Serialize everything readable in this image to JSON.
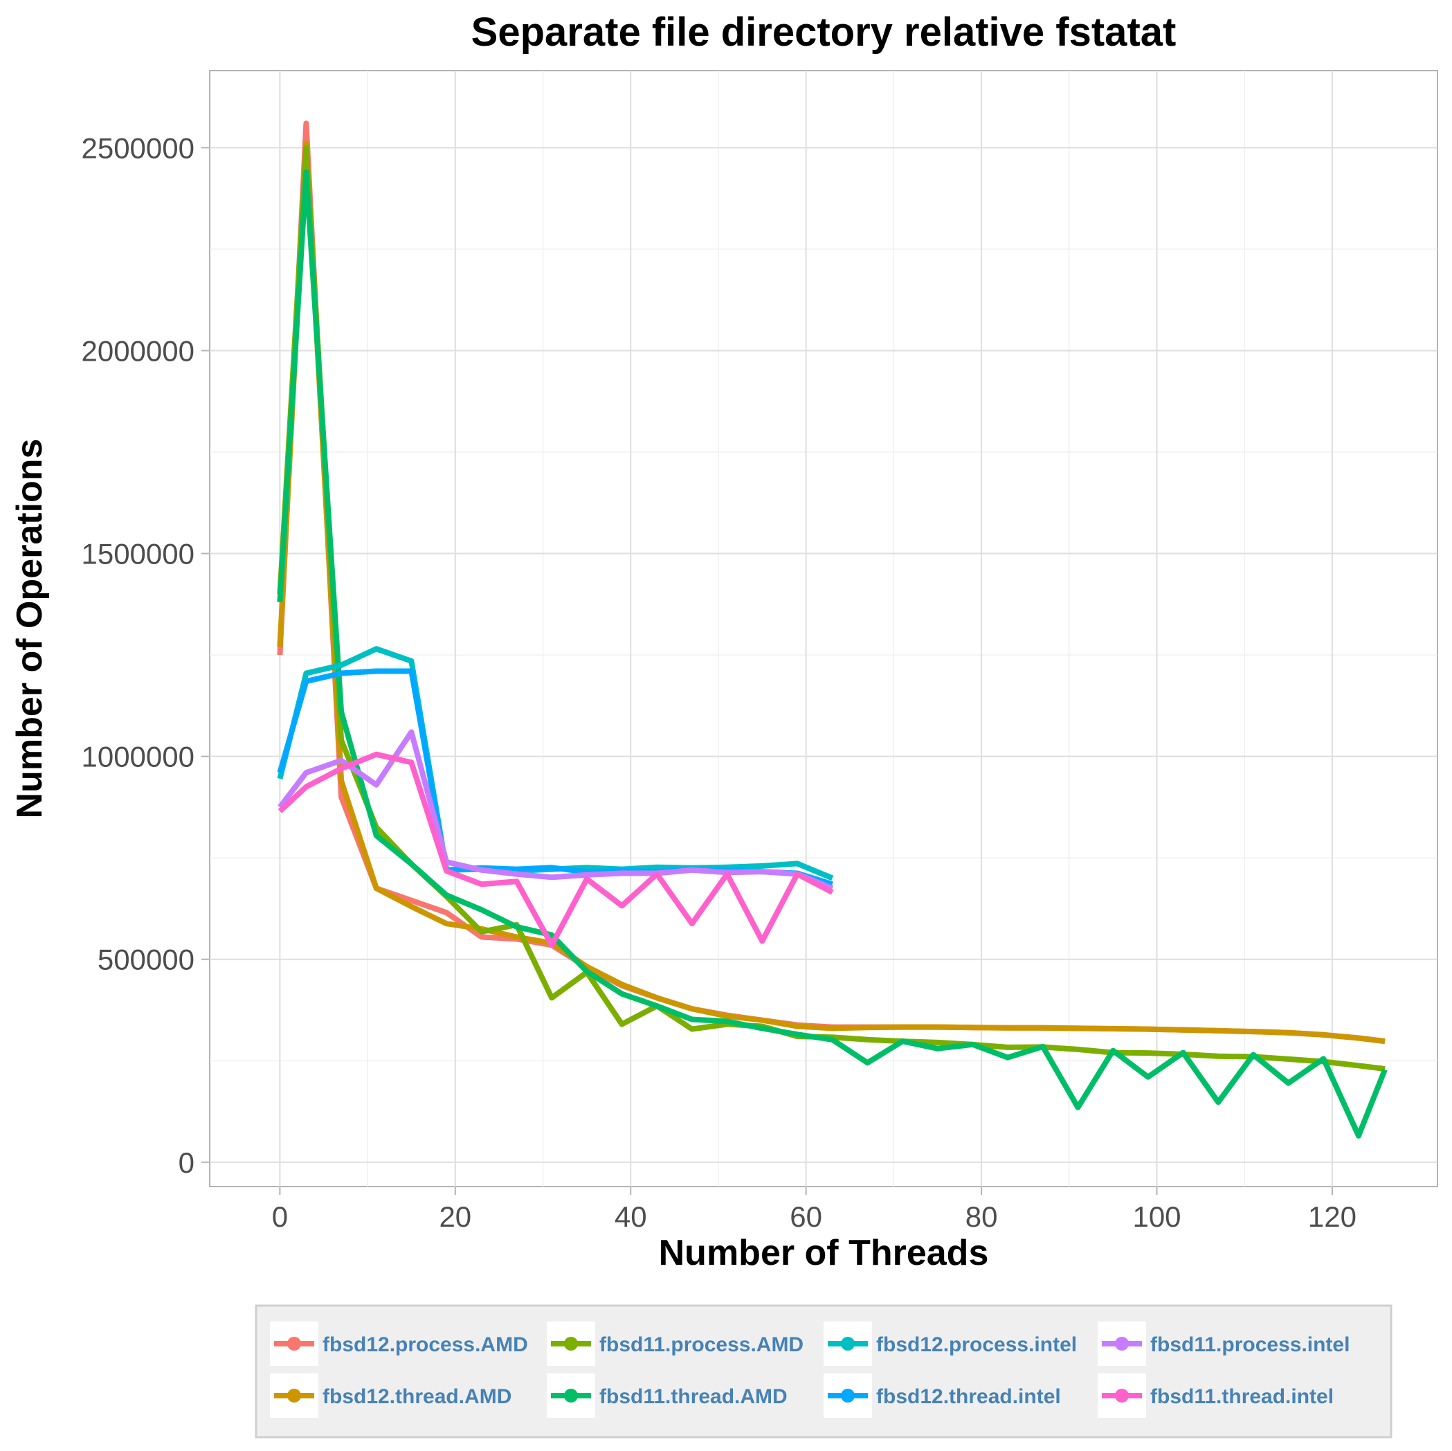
{
  "chart_data": {
    "type": "line",
    "title": "Separate file directory relative fstatat",
    "xlabel": "Number of Threads",
    "ylabel": "Number of Operations",
    "xlim": [
      -8,
      132
    ],
    "ylim": [
      -60000,
      2690000
    ],
    "x_ticks": [
      0,
      20,
      40,
      60,
      80,
      100,
      120
    ],
    "x_tick_labels": [
      "0",
      "20",
      "40",
      "60",
      "80",
      "100",
      "120"
    ],
    "y_ticks": [
      0,
      500000,
      1000000,
      1500000,
      2000000,
      2500000
    ],
    "y_tick_labels": [
      "0",
      "500000",
      "1000000",
      "1500000",
      "2000000",
      "2500000"
    ],
    "grid": true,
    "legend_position": "bottom",
    "series": [
      {
        "name": "fbsd12.process.AMD",
        "color": "#F8766D",
        "x": [
          0,
          3,
          7,
          11,
          15,
          19,
          23,
          27,
          31,
          35,
          39,
          43,
          47,
          51,
          55,
          59,
          63,
          67,
          71,
          75,
          79,
          83,
          87,
          91,
          95,
          99,
          103,
          107,
          111,
          115,
          119,
          123,
          126
        ],
        "y": [
          1250000,
          2560000,
          900000,
          675000,
          645000,
          615000,
          555000,
          550000,
          535000,
          480000,
          435000,
          405000,
          378000,
          362000,
          350000,
          338000,
          333000,
          333000,
          333000,
          333000,
          332000,
          331000,
          331000,
          330000,
          329000,
          328000,
          326000,
          324000,
          322000,
          319000,
          314000,
          306000,
          298000
        ]
      },
      {
        "name": "fbsd12.thread.AMD",
        "color": "#CD9600",
        "x": [
          0,
          3,
          7,
          11,
          15,
          19,
          23,
          27,
          31,
          35,
          39,
          43,
          47,
          51,
          55,
          59,
          63,
          67,
          71,
          75,
          79,
          83,
          87,
          91,
          95,
          99,
          103,
          107,
          111,
          115,
          119,
          123,
          126
        ],
        "y": [
          1270000,
          2510000,
          940000,
          675000,
          630000,
          588000,
          575000,
          555000,
          540000,
          482000,
          438000,
          405000,
          378000,
          360000,
          350000,
          335000,
          330000,
          332000,
          333000,
          333000,
          332000,
          331000,
          331000,
          330000,
          329000,
          328000,
          326000,
          324000,
          322000,
          319000,
          314000,
          306000,
          298000
        ]
      },
      {
        "name": "fbsd11.process.AMD",
        "color": "#7CAE00",
        "x": [
          0,
          3,
          7,
          11,
          15,
          19,
          23,
          27,
          31,
          35,
          39,
          43,
          47,
          51,
          55,
          59,
          63,
          67,
          71,
          75,
          79,
          83,
          87,
          91,
          95,
          99,
          103,
          107,
          111,
          115,
          119,
          123,
          126
        ],
        "y": [
          1400000,
          2500000,
          1040000,
          825000,
          735000,
          655000,
          568000,
          585000,
          405000,
          468000,
          340000,
          385000,
          328000,
          340000,
          335000,
          310000,
          308000,
          302000,
          298000,
          295000,
          290000,
          283000,
          284000,
          278000,
          270000,
          269000,
          266000,
          261000,
          260000,
          254000,
          248000,
          238000,
          230000
        ]
      },
      {
        "name": "fbsd11.thread.AMD",
        "color": "#00BE67",
        "x": [
          0,
          3,
          7,
          11,
          15,
          19,
          23,
          27,
          31,
          35,
          39,
          43,
          47,
          51,
          55,
          59,
          63,
          67,
          71,
          75,
          79,
          83,
          87,
          91,
          95,
          99,
          103,
          107,
          111,
          115,
          119,
          123,
          126
        ],
        "y": [
          1380000,
          2440000,
          1110000,
          805000,
          735000,
          658000,
          622000,
          580000,
          560000,
          470000,
          415000,
          385000,
          352000,
          347000,
          330000,
          315000,
          302000,
          245000,
          298000,
          280000,
          290000,
          258000,
          285000,
          135000,
          275000,
          210000,
          270000,
          148000,
          265000,
          195000,
          255000,
          65000,
          228000
        ]
      },
      {
        "name": "fbsd12.process.intel",
        "color": "#00BFC4",
        "x": [
          0,
          3,
          7,
          11,
          15,
          19,
          23,
          27,
          31,
          35,
          39,
          43,
          47,
          51,
          55,
          59,
          63
        ],
        "y": [
          945000,
          1205000,
          1225000,
          1265000,
          1235000,
          720000,
          722000,
          718000,
          722000,
          726000,
          722000,
          727000,
          725000,
          727000,
          730000,
          736000,
          700000
        ]
      },
      {
        "name": "fbsd12.thread.intel",
        "color": "#00A9FF",
        "x": [
          0,
          3,
          7,
          11,
          15,
          19,
          23,
          27,
          31,
          35,
          39,
          43,
          47,
          51,
          55,
          59,
          63
        ],
        "y": [
          960000,
          1185000,
          1205000,
          1210000,
          1210000,
          720000,
          725000,
          722000,
          726000,
          715000,
          718000,
          716000,
          722000,
          719000,
          716000,
          712000,
          685000
        ]
      },
      {
        "name": "fbsd11.process.intel",
        "color": "#C77CFF",
        "x": [
          0,
          3,
          7,
          11,
          15,
          19,
          23,
          27,
          31,
          35,
          39,
          43,
          47,
          51,
          55,
          59,
          63
        ],
        "y": [
          875000,
          960000,
          990000,
          930000,
          1060000,
          740000,
          720000,
          710000,
          702000,
          708000,
          712000,
          712000,
          720000,
          714000,
          716000,
          710000,
          675000
        ]
      },
      {
        "name": "fbsd11.thread.intel",
        "color": "#FF61CC",
        "x": [
          0,
          3,
          7,
          11,
          15,
          19,
          23,
          27,
          31,
          35,
          39,
          43,
          47,
          51,
          55,
          59,
          63
        ],
        "y": [
          865000,
          925000,
          970000,
          1005000,
          985000,
          718000,
          685000,
          692000,
          535000,
          698000,
          632000,
          710000,
          588000,
          710000,
          545000,
          710000,
          665000
        ]
      }
    ]
  }
}
